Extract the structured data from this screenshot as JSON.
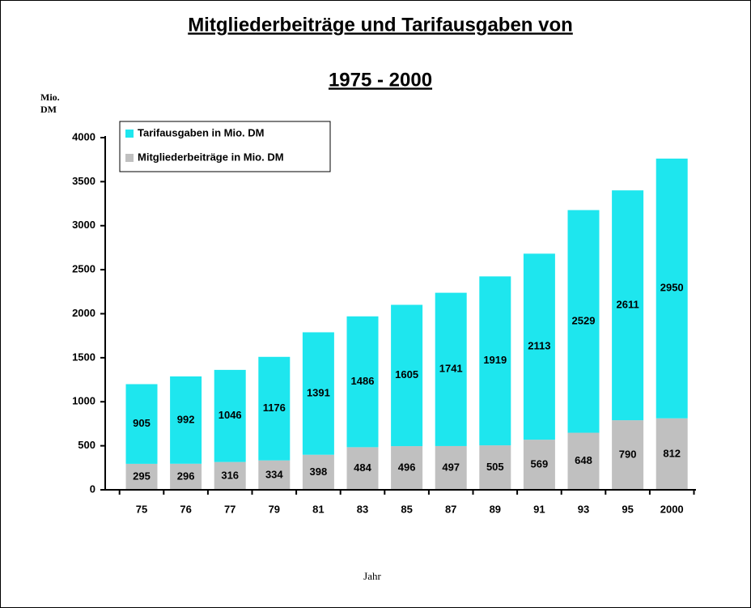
{
  "chart_data": {
    "type": "stacked_bar",
    "title": "Mitgliederbeiträge und Tarifausgaben von",
    "subtitle": "1975 - 2000",
    "y_label": "Mio. DM",
    "x_label": "Jahr",
    "categories": [
      "75",
      "76",
      "77",
      "79",
      "81",
      "83",
      "85",
      "87",
      "89",
      "91",
      "93",
      "95",
      "2000"
    ],
    "series": [
      {
        "name": "Tarifausgaben in Mio. DM",
        "color": "#1ee6ee",
        "values": [
          905,
          992,
          1046,
          1176,
          1391,
          1486,
          1605,
          1741,
          1919,
          2113,
          2529,
          2611,
          2950
        ]
      },
      {
        "name": "Mitgliederbeiträge in Mio. DM",
        "color": "#c0c0c0",
        "values": [
          295,
          296,
          316,
          334,
          398,
          484,
          496,
          497,
          505,
          569,
          648,
          790,
          812
        ]
      }
    ],
    "ylim": [
      0,
      4000
    ],
    "yticks": [
      0,
      500,
      1000,
      1500,
      2000,
      2500,
      3000,
      3500,
      4000
    ],
    "legend": "top-left"
  }
}
